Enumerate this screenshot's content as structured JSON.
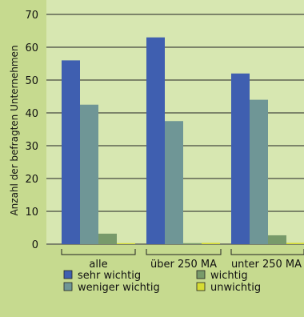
{
  "chart_data": {
    "type": "bar",
    "title": "",
    "xlabel": "",
    "ylabel": "Anzahl der befragten Unternehmen",
    "ylim": [
      0,
      70
    ],
    "yticks": [
      0,
      10,
      20,
      30,
      40,
      50,
      60,
      70
    ],
    "grid": true,
    "legend_position": "bottom",
    "categories": [
      "alle",
      "über 250 MA",
      "unter 250 MA"
    ],
    "series": [
      {
        "name": "sehr wichtig",
        "color": "#3f5fb0",
        "values": [
          56,
          63,
          52
        ]
      },
      {
        "name": "weniger wichtig",
        "color": "#6f9696",
        "values": [
          42.5,
          37.5,
          44
        ]
      },
      {
        "name": "wichtig",
        "color": "#789a6a",
        "values": [
          3.2,
          0.3,
          2.7
        ]
      },
      {
        "name": "unwichtig",
        "color": "#d6dc34",
        "values": [
          0.3,
          0.4,
          0.4
        ]
      }
    ]
  }
}
